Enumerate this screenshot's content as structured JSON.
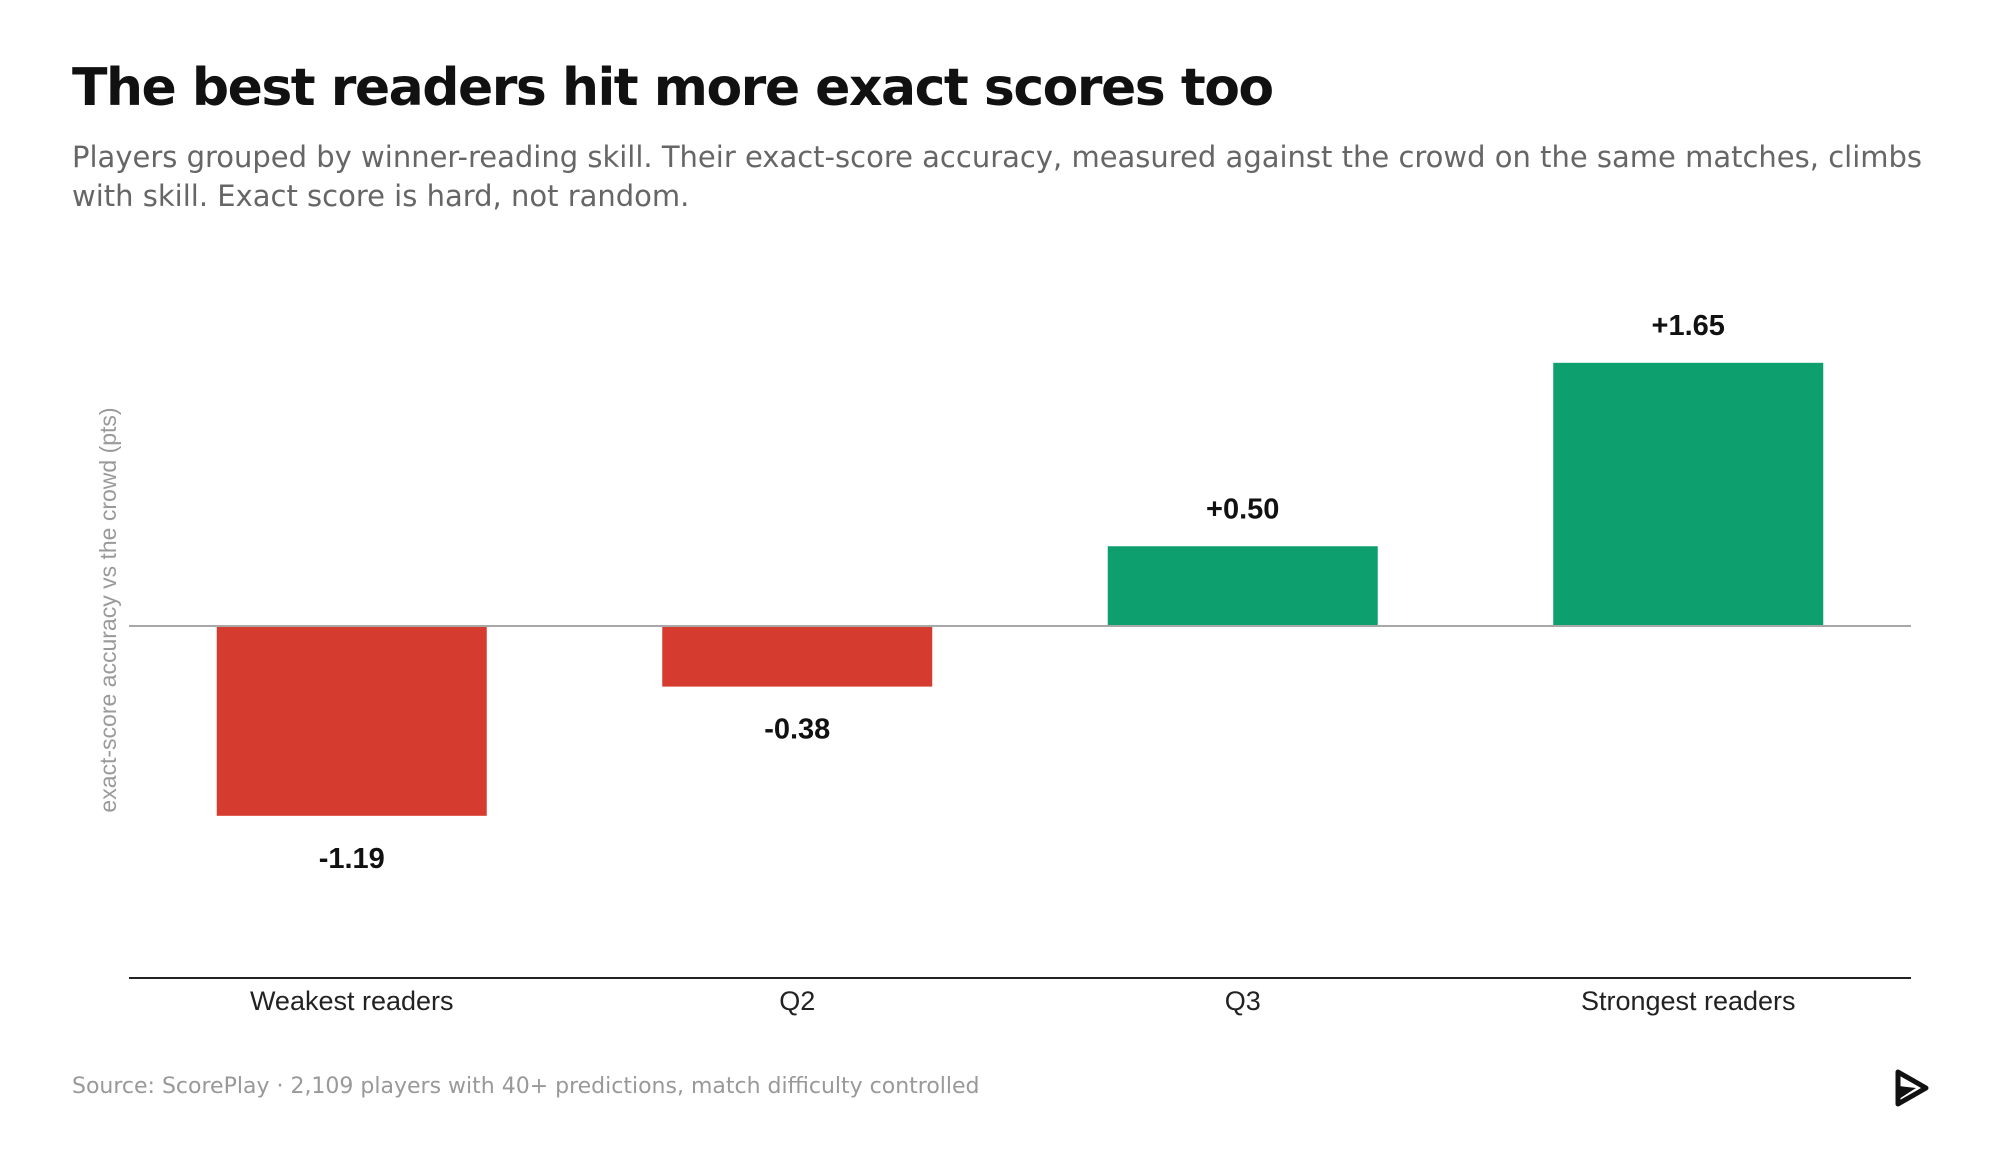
{
  "title": "The best readers hit more exact scores too",
  "subtitle": "Players grouped by winner-reading skill. Their exact-score accuracy, measured against the crowd on the same matches, climbs with skill. Exact score is hard, not random.",
  "source": "Source: ScorePlay · 2,109 players with 40+ predictions, match difficulty controlled",
  "logo_icon": "play-arrow-logo-icon",
  "colors": {
    "negative": "#d63b30",
    "positive": "#0e9f6e",
    "text": "#111111",
    "muted": "#666666"
  },
  "chart_data": {
    "type": "bar",
    "categories": [
      "Weakest readers",
      "Q2",
      "Q3",
      "Strongest readers"
    ],
    "values": [
      -1.19,
      -0.38,
      0.5,
      1.65
    ],
    "value_labels": [
      "-1.19",
      "-0.38",
      "+0.50",
      "+1.65"
    ],
    "title": "The best readers hit more exact scores too",
    "xlabel": "",
    "ylabel": "exact-score accuracy vs the crowd (pts)",
    "ylim": [
      -2.2,
      2.2
    ],
    "grid": false,
    "legend": "none",
    "zero_line": true
  }
}
